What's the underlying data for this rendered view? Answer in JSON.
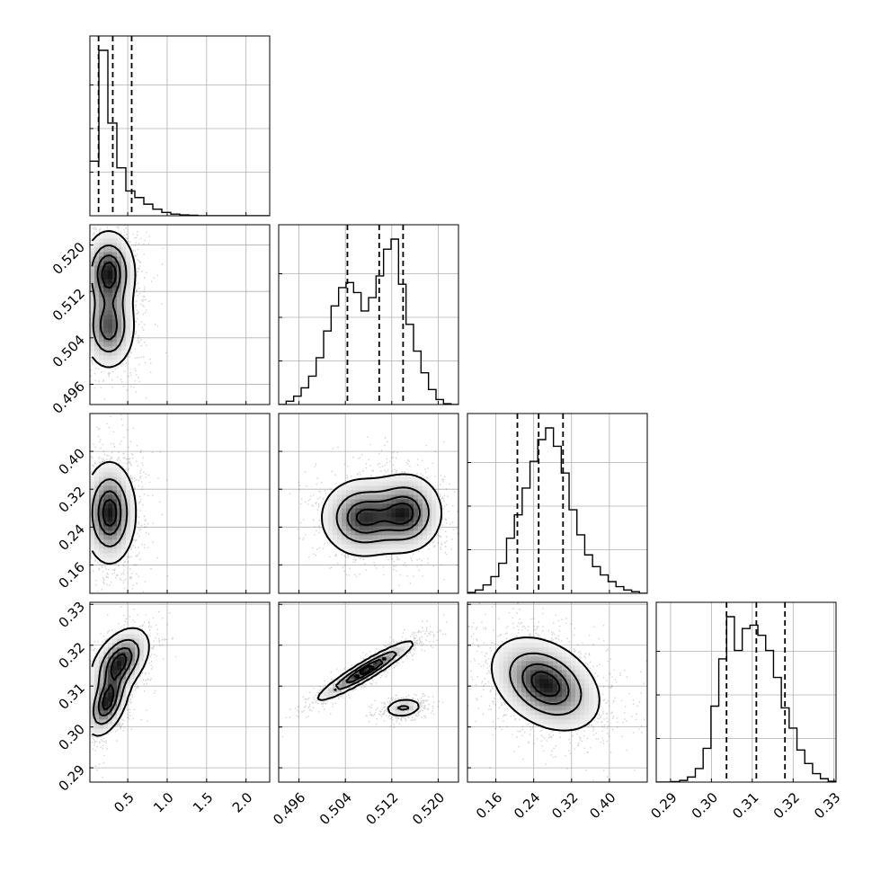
{
  "chart_data": {
    "type": "corner",
    "parameters": [
      {
        "key": "p0",
        "lim": [
          0.02,
          2.3
        ],
        "ticks": [
          0.5,
          1.0,
          1.5,
          2.0
        ],
        "tick_labels": [
          "0.5",
          "1.0",
          "1.5",
          "2.0"
        ]
      },
      {
        "key": "p1",
        "lim": [
          0.4925,
          0.5235
        ],
        "ticks": [
          0.496,
          0.504,
          0.512,
          0.52
        ],
        "tick_labels": [
          "0.496",
          "0.504",
          "0.512",
          "0.520"
        ]
      },
      {
        "key": "p2",
        "lim": [
          0.1,
          0.48
        ],
        "ticks": [
          0.16,
          0.24,
          0.32,
          0.4
        ],
        "tick_labels": [
          "0.16",
          "0.24",
          "0.32",
          "0.40"
        ]
      },
      {
        "key": "p3",
        "lim": [
          0.2865,
          0.3305
        ],
        "ticks": [
          0.29,
          0.3,
          0.31,
          0.32,
          0.33
        ],
        "tick_labels": [
          "0.29",
          "0.30",
          "0.31",
          "0.32",
          "0.33"
        ]
      }
    ],
    "diagonal_histograms": [
      {
        "param": 0,
        "density": [
          0.33,
          1.0,
          0.56,
          0.29,
          0.15,
          0.11,
          0.07,
          0.04,
          0.02,
          0.01,
          0.005,
          0.003,
          0,
          0,
          0,
          0,
          0,
          0,
          0,
          0
        ],
        "quantiles": [
          0.13,
          0.31,
          0.55
        ]
      },
      {
        "param": 1,
        "density": [
          0,
          0.02,
          0.05,
          0.1,
          0.17,
          0.28,
          0.44,
          0.59,
          0.7,
          0.73,
          0.67,
          0.56,
          0.64,
          0.77,
          0.93,
          0.99,
          0.72,
          0.48,
          0.32,
          0.19,
          0.09,
          0.03,
          0.005,
          0
        ],
        "quantiles": [
          0.50435,
          0.50983,
          0.51395
        ]
      },
      {
        "param": 2,
        "density": [
          0.005,
          0.02,
          0.05,
          0.1,
          0.18,
          0.33,
          0.47,
          0.63,
          0.79,
          0.92,
          0.99,
          0.88,
          0.72,
          0.5,
          0.35,
          0.23,
          0.16,
          0.11,
          0.07,
          0.04,
          0.02,
          0.01,
          0
        ],
        "quantiles": [
          0.2055,
          0.2505,
          0.302
        ]
      },
      {
        "param": 3,
        "density": [
          0,
          0,
          0.003,
          0.01,
          0.03,
          0.08,
          0.2,
          0.45,
          0.73,
          0.98,
          0.78,
          0.91,
          0.93,
          0.87,
          0.78,
          0.62,
          0.44,
          0.32,
          0.19,
          0.11,
          0.05,
          0.02,
          0.005
        ],
        "quantiles": [
          0.3037,
          0.311,
          0.318
        ]
      }
    ],
    "pairs": [
      {
        "x": 0,
        "y": 1,
        "modes": [
          {
            "center": [
              0.26,
              0.5152
            ],
            "spread": [
              0.16,
              0.0035
            ],
            "weight": 0.55,
            "rho": 0
          },
          {
            "center": [
              0.26,
              0.5058
            ],
            "spread": [
              0.16,
              0.0035
            ],
            "weight": 0.45,
            "rho": 0
          }
        ]
      },
      {
        "x": 0,
        "y": 2,
        "modes": [
          {
            "center": [
              0.27,
              0.27
            ],
            "spread": [
              0.16,
              0.052
            ],
            "weight": 1.0,
            "rho": 0
          }
        ]
      },
      {
        "x": 0,
        "y": 3,
        "modes": [
          {
            "center": [
              0.24,
              0.306
            ],
            "spread": [
              0.13,
              0.004
            ],
            "weight": 0.5,
            "rho": 0.45
          },
          {
            "center": [
              0.4,
              0.316
            ],
            "spread": [
              0.18,
              0.004
            ],
            "weight": 0.5,
            "rho": 0.45
          }
        ]
      },
      {
        "x": 1,
        "y": 2,
        "modes": [
          {
            "center": [
              0.507,
              0.26
            ],
            "spread": [
              0.0035,
              0.04
            ],
            "weight": 0.5,
            "rho": 0
          },
          {
            "center": [
              0.5145,
              0.27
            ],
            "spread": [
              0.003,
              0.04
            ],
            "weight": 0.5,
            "rho": 0
          }
        ]
      },
      {
        "x": 1,
        "y": 3,
        "modes": [
          {
            "center": [
              0.5075,
              0.3138
            ],
            "spread": [
              0.004,
              0.0035
            ],
            "weight": 0.68,
            "rho": 0.94
          },
          {
            "center": [
              0.514,
              0.3047
            ],
            "spread": [
              0.0016,
              0.0011
            ],
            "weight": 0.32,
            "rho": 0.2
          }
        ]
      },
      {
        "x": 2,
        "y": 3,
        "modes": [
          {
            "center": [
              0.265,
              0.3105
            ],
            "spread": [
              0.055,
              0.0055
            ],
            "weight": 1.0,
            "rho": -0.35
          }
        ]
      }
    ],
    "contour_levels": [
      0.118,
      0.393,
      0.675,
      0.864
    ],
    "grid": true,
    "xlabel": "",
    "ylabel": ""
  }
}
